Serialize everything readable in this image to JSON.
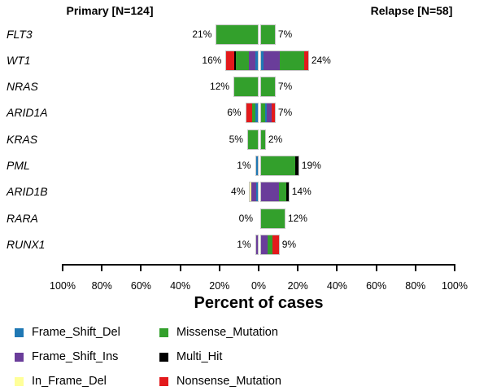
{
  "titles": {
    "left": "Primary [N=124]",
    "right": "Relapse [N=58]"
  },
  "axis": {
    "label": "Percent of cases",
    "ticks": [
      "100%",
      "80%",
      "60%",
      "40%",
      "20%",
      "0%",
      "20%",
      "40%",
      "60%",
      "80%",
      "100%"
    ]
  },
  "colors": {
    "Frame_Shift_Del": "#1F78B4",
    "Frame_Shift_Ins": "#6A3D9A",
    "In_Frame_Del": "#FFFF99",
    "Missense_Mutation": "#33A02C",
    "Multi_Hit": "#000000",
    "Nonsense_Mutation": "#E31A1C",
    "bar_border": "#c6c6c6"
  },
  "legend": [
    {
      "label": "Frame_Shift_Del",
      "color": "#1F78B4"
    },
    {
      "label": "Frame_Shift_Ins",
      "color": "#6A3D9A"
    },
    {
      "label": "In_Frame_Del",
      "color": "#FFFF99"
    },
    {
      "label": "Missense_Mutation",
      "color": "#33A02C"
    },
    {
      "label": "Multi_Hit",
      "color": "#000000"
    },
    {
      "label": "Nonsense_Mutation",
      "color": "#E31A1C"
    }
  ],
  "chart_data": {
    "type": "bar",
    "variant": "diverging-stacked-horizontal",
    "title_left": "Primary [N=124]",
    "title_right": "Relapse [N=58]",
    "cohorts": {
      "primary_n": 124,
      "relapse_n": 58
    },
    "xlabel": "Percent of cases",
    "xlim_percent": [
      -100,
      100
    ],
    "tick_step_percent": 20,
    "genes": [
      "FLT3",
      "WT1",
      "NRAS",
      "ARID1A",
      "KRAS",
      "PML",
      "ARID1B",
      "RARA",
      "RUNX1"
    ],
    "rows": [
      {
        "gene": "FLT3",
        "left_label": "21%",
        "right_label": "7%",
        "left": [
          {
            "type": "Missense_Mutation",
            "value": 21
          }
        ],
        "right": [
          {
            "type": "Missense_Mutation",
            "value": 7
          }
        ]
      },
      {
        "gene": "WT1",
        "left_label": "16%",
        "right_label": "24%",
        "left": [
          {
            "type": "Nonsense_Mutation",
            "value": 3.8
          },
          {
            "type": "Multi_Hit",
            "value": 1.0
          },
          {
            "type": "Missense_Mutation",
            "value": 6.6
          },
          {
            "type": "Frame_Shift_Ins",
            "value": 3.4
          },
          {
            "type": "Frame_Shift_Del",
            "value": 1.2
          }
        ],
        "right": [
          {
            "type": "Frame_Shift_Del",
            "value": 1.4
          },
          {
            "type": "Frame_Shift_Ins",
            "value": 8.2
          },
          {
            "type": "Missense_Mutation",
            "value": 12.2
          },
          {
            "type": "Nonsense_Mutation",
            "value": 2.2
          }
        ]
      },
      {
        "gene": "NRAS",
        "left_label": "12%",
        "right_label": "7%",
        "left": [
          {
            "type": "Missense_Mutation",
            "value": 12
          }
        ],
        "right": [
          {
            "type": "Missense_Mutation",
            "value": 7
          }
        ]
      },
      {
        "gene": "ARID1A",
        "left_label": "6%",
        "right_label": "7%",
        "left": [
          {
            "type": "Nonsense_Mutation",
            "value": 3.0
          },
          {
            "type": "Missense_Mutation",
            "value": 1.8
          },
          {
            "type": "Frame_Shift_Del",
            "value": 1.2
          }
        ],
        "right": [
          {
            "type": "Missense_Mutation",
            "value": 2.0
          },
          {
            "type": "Frame_Shift_Del",
            "value": 1.0
          },
          {
            "type": "Frame_Shift_Ins",
            "value": 2.5
          },
          {
            "type": "Nonsense_Mutation",
            "value": 1.5
          }
        ]
      },
      {
        "gene": "KRAS",
        "left_label": "5%",
        "right_label": "2%",
        "left": [
          {
            "type": "Missense_Mutation",
            "value": 5
          }
        ],
        "right": [
          {
            "type": "Missense_Mutation",
            "value": 2
          }
        ]
      },
      {
        "gene": "PML",
        "left_label": "1%",
        "right_label": "19%",
        "left": [
          {
            "type": "Frame_Shift_Del",
            "value": 1
          }
        ],
        "right": [
          {
            "type": "Missense_Mutation",
            "value": 17.5
          },
          {
            "type": "Multi_Hit",
            "value": 1.5
          }
        ]
      },
      {
        "gene": "ARID1B",
        "left_label": "4%",
        "right_label": "14%",
        "left": [
          {
            "type": "In_Frame_Del",
            "value": 0.8
          },
          {
            "type": "Frame_Shift_Ins",
            "value": 2.2
          },
          {
            "type": "Frame_Shift_Del",
            "value": 1.0
          }
        ],
        "right": [
          {
            "type": "Frame_Shift_Ins",
            "value": 9.0
          },
          {
            "type": "Missense_Mutation",
            "value": 3.8
          },
          {
            "type": "Multi_Hit",
            "value": 1.2
          }
        ]
      },
      {
        "gene": "RARA",
        "left_label": "0%",
        "right_label": "12%",
        "left": [],
        "right": [
          {
            "type": "Missense_Mutation",
            "value": 12
          }
        ]
      },
      {
        "gene": "RUNX1",
        "left_label": "1%",
        "right_label": "9%",
        "left": [
          {
            "type": "Frame_Shift_Ins",
            "value": 1
          }
        ],
        "right": [
          {
            "type": "Frame_Shift_Ins",
            "value": 3.5
          },
          {
            "type": "Missense_Mutation",
            "value": 2.5
          },
          {
            "type": "Nonsense_Mutation",
            "value": 3.0
          }
        ]
      }
    ]
  }
}
